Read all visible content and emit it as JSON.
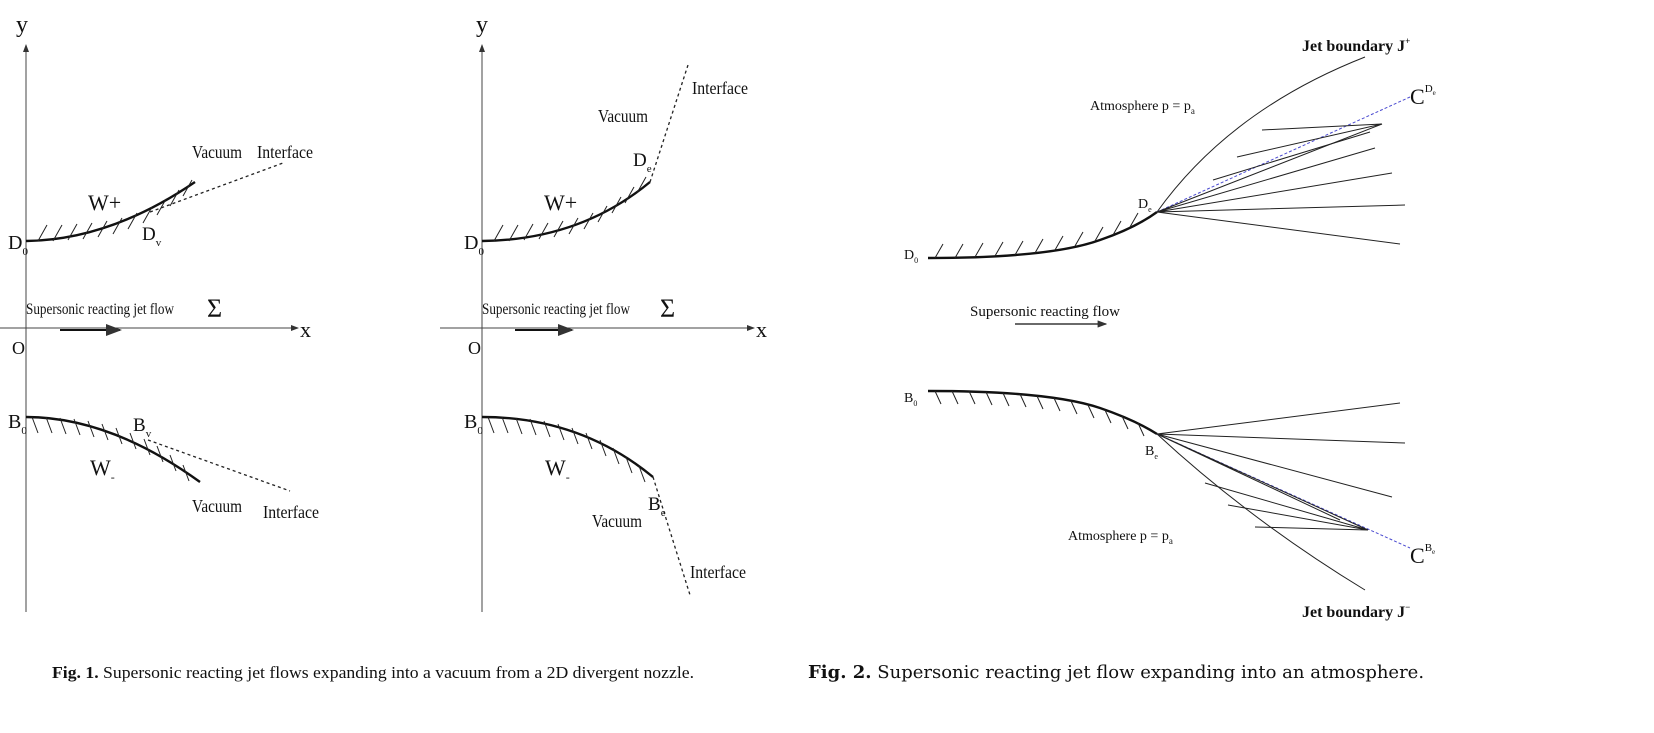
{
  "fig1": {
    "left": {
      "y_axis": "y",
      "x_axis": "x",
      "origin": "O",
      "d0": "D",
      "d0_sub": "0",
      "dv": "D",
      "dv_sub": "v",
      "b0": "B",
      "b0_sub": "0",
      "bv": "B",
      "bv_sub": "v",
      "w_plus": "W+",
      "w_minus": "W",
      "w_minus_sub": "-",
      "vacuum_top": "Vacuum",
      "interface_top": "Interface",
      "vacuum_bottom": "Vacuum",
      "interface_bottom": "Interface",
      "flow": "Supersonic reacting jet flow",
      "sigma": "Σ"
    },
    "right": {
      "y_axis": "y",
      "x_axis": "x",
      "origin": "O",
      "d0": "D",
      "d0_sub": "0",
      "de": "D",
      "de_sub": "e",
      "b0": "B",
      "b0_sub": "0",
      "be": "B",
      "be_sub": "e",
      "w_plus": "W+",
      "w_minus": "W",
      "w_minus_sub": "-",
      "vacuum_top": "Vacuum",
      "interface_top": "Interface",
      "vacuum_bottom": "Vacuum",
      "interface_bottom": "Interface",
      "flow": "Supersonic reacting jet flow",
      "sigma": "Σ"
    },
    "caption_label": "Fig. 1.",
    "caption": "Supersonic reacting jet flows expanding into a vacuum from a 2D divergent nozzle."
  },
  "fig2": {
    "jet_top": "Jet boundary J",
    "jet_top_sup": "+",
    "jet_bottom": "Jet boundary J",
    "jet_bottom_sup": "−",
    "atm_top": "Atmosphere p = p",
    "atm_top_sub": "a",
    "atm_bottom": "Atmosphere p = p",
    "atm_bottom_sub": "a",
    "c_top": "C",
    "c_top_sup": "D",
    "c_top_sup_sub": "e",
    "c_bottom": "C",
    "c_bottom_sup": "B",
    "c_bottom_sup_sub": "e",
    "d0": "D",
    "d0_sub": "0",
    "de": "D",
    "de_sub": "e",
    "b0": "B",
    "b0_sub": "0",
    "be": "B",
    "be_sub": "e",
    "flow": "Supersonic reacting flow",
    "characteristic_color": "#4a4ad0",
    "caption_label": "Fig. 2.",
    "caption": "Supersonic reacting jet flow expanding into an atmosphere."
  }
}
